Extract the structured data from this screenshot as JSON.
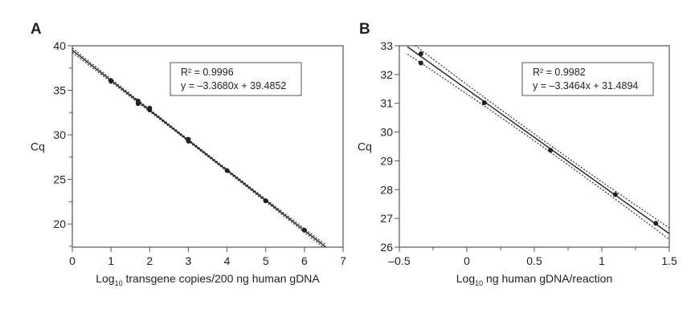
{
  "chart_data": [
    {
      "type": "scatter",
      "panel_label": "A",
      "xlabel": "Log",
      "xlabel_sub": "10",
      "xlabel_rest": " transgene copies/200 ng human gDNA",
      "ylabel": "Cq",
      "xlim": [
        0,
        7
      ],
      "ylim": [
        17.4,
        40
      ],
      "xticks": [
        0,
        1,
        2,
        3,
        4,
        5,
        6,
        7
      ],
      "yticks": [
        20,
        25,
        30,
        35,
        40
      ],
      "grid": false,
      "points": [
        {
          "x": 1,
          "y": 36.1
        },
        {
          "x": 1,
          "y": 36.0
        },
        {
          "x": 1.7,
          "y": 33.8
        },
        {
          "x": 1.7,
          "y": 33.5
        },
        {
          "x": 2,
          "y": 33.0
        },
        {
          "x": 2,
          "y": 32.8
        },
        {
          "x": 3,
          "y": 29.5
        },
        {
          "x": 3,
          "y": 29.3
        },
        {
          "x": 4,
          "y": 26.0
        },
        {
          "x": 5,
          "y": 22.6
        },
        {
          "x": 6,
          "y": 19.3
        }
      ],
      "fit": {
        "slope": -3.368,
        "intercept": 39.4852,
        "x_range": [
          0,
          6.55
        ],
        "ci_halfwidth": [
          0.25,
          0.12,
          0.25
        ]
      },
      "legend": {
        "r2": "R² = 0.9996",
        "equation": "y = –3.3680x + 39.4852",
        "placement": "top-right"
      }
    },
    {
      "type": "scatter",
      "panel_label": "B",
      "xlabel": "Log",
      "xlabel_sub": "10",
      "xlabel_rest": " ng human gDNA/reaction",
      "ylabel": "Cq",
      "xlim": [
        -0.5,
        1.5
      ],
      "ylim": [
        26,
        33
      ],
      "xticks": [
        -0.5,
        0,
        0.5,
        1,
        1.5
      ],
      "xtick_labels": [
        "–0.5",
        "0",
        "0.5",
        "1",
        "1.5"
      ],
      "yticks": [
        26,
        27,
        28,
        29,
        30,
        31,
        32,
        33
      ],
      "grid": false,
      "points": [
        {
          "x": -0.34,
          "y": 32.72
        },
        {
          "x": -0.34,
          "y": 32.4
        },
        {
          "x": 0.13,
          "y": 31.02
        },
        {
          "x": 0.62,
          "y": 29.37
        },
        {
          "x": 1.1,
          "y": 27.83
        },
        {
          "x": 1.4,
          "y": 26.83
        }
      ],
      "fit": {
        "slope": -3.3464,
        "intercept": 31.4894,
        "x_range": [
          -0.44,
          1.5
        ],
        "ci_halfwidth": [
          0.25,
          0.12,
          0.2
        ]
      },
      "legend": {
        "r2": "R² = 0.9982",
        "equation": "y = –3.3464x + 31.4894",
        "placement": "top-right"
      }
    }
  ]
}
